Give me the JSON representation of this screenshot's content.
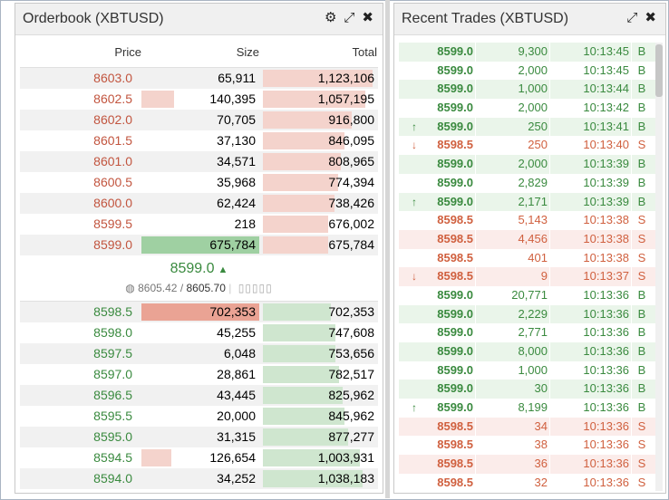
{
  "orderbook": {
    "title": "Orderbook (XBTUSD)",
    "columns": {
      "price": "Price",
      "size": "Size",
      "total": "Total"
    },
    "asks": [
      {
        "price": "8603.0",
        "size": "65,911",
        "total": "1,123,106",
        "size_frac": 0.0,
        "total_frac": 0.95
      },
      {
        "price": "8602.5",
        "size": "140,395",
        "total": "1,057,195",
        "size_frac": 0.28,
        "total_frac": 0.89
      },
      {
        "price": "8602.0",
        "size": "70,705",
        "total": "916,800",
        "size_frac": 0.0,
        "total_frac": 0.77
      },
      {
        "price": "8601.5",
        "size": "37,130",
        "total": "846,095",
        "size_frac": 0.0,
        "total_frac": 0.71
      },
      {
        "price": "8601.0",
        "size": "34,571",
        "total": "808,965",
        "size_frac": 0.0,
        "total_frac": 0.68
      },
      {
        "price": "8600.5",
        "size": "35,968",
        "total": "774,394",
        "size_frac": 0.0,
        "total_frac": 0.65
      },
      {
        "price": "8600.0",
        "size": "62,424",
        "total": "738,426",
        "size_frac": 0.0,
        "total_frac": 0.62
      },
      {
        "price": "8599.5",
        "size": "218",
        "total": "676,002",
        "size_frac": 0.0,
        "total_frac": 0.57
      },
      {
        "price": "8599.0",
        "size": "675,784",
        "total": "675,784",
        "size_frac": 1.0,
        "total_frac": 0.57
      }
    ],
    "mid": {
      "price": "8599.0",
      "index": "8605.42",
      "mark": "8605.70",
      "boxes": "▯▯▯▯▯"
    },
    "bids": [
      {
        "price": "8598.5",
        "size": "702,353",
        "total": "702,353",
        "size_frac": 1.0,
        "total_frac": 0.59
      },
      {
        "price": "8598.0",
        "size": "45,255",
        "total": "747,608",
        "size_frac": 0.0,
        "total_frac": 0.63
      },
      {
        "price": "8597.5",
        "size": "6,048",
        "total": "753,656",
        "size_frac": 0.0,
        "total_frac": 0.63
      },
      {
        "price": "8597.0",
        "size": "28,861",
        "total": "782,517",
        "size_frac": 0.0,
        "total_frac": 0.66
      },
      {
        "price": "8596.5",
        "size": "43,445",
        "total": "825,962",
        "size_frac": 0.0,
        "total_frac": 0.69
      },
      {
        "price": "8595.5",
        "size": "20,000",
        "total": "845,962",
        "size_frac": 0.0,
        "total_frac": 0.71
      },
      {
        "price": "8595.0",
        "size": "31,315",
        "total": "877,277",
        "size_frac": 0.0,
        "total_frac": 0.74
      },
      {
        "price": "8594.5",
        "size": "126,654",
        "total": "1,003,931",
        "size_frac": 0.25,
        "total_frac": 0.84
      },
      {
        "price": "8594.0",
        "size": "34,252",
        "total": "1,038,183",
        "size_frac": 0.0,
        "total_frac": 0.87
      }
    ]
  },
  "trades": {
    "title": "Recent Trades (XBTUSD)",
    "rows": [
      {
        "arrow": "",
        "price": "8599.0",
        "size": "9,300",
        "time": "10:13:45",
        "side": "B"
      },
      {
        "arrow": "",
        "price": "8599.0",
        "size": "2,000",
        "time": "10:13:45",
        "side": "B"
      },
      {
        "arrow": "",
        "price": "8599.0",
        "size": "1,000",
        "time": "10:13:44",
        "side": "B"
      },
      {
        "arrow": "",
        "price": "8599.0",
        "size": "2,000",
        "time": "10:13:42",
        "side": "B"
      },
      {
        "arrow": "↑",
        "price": "8599.0",
        "size": "250",
        "time": "10:13:41",
        "side": "B"
      },
      {
        "arrow": "↓",
        "price": "8598.5",
        "size": "250",
        "time": "10:13:40",
        "side": "S"
      },
      {
        "arrow": "",
        "price": "8599.0",
        "size": "2,000",
        "time": "10:13:39",
        "side": "B"
      },
      {
        "arrow": "",
        "price": "8599.0",
        "size": "2,829",
        "time": "10:13:39",
        "side": "B"
      },
      {
        "arrow": "↑",
        "price": "8599.0",
        "size": "2,171",
        "time": "10:13:39",
        "side": "B"
      },
      {
        "arrow": "",
        "price": "8598.5",
        "size": "5,143",
        "time": "10:13:38",
        "side": "S"
      },
      {
        "arrow": "",
        "price": "8598.5",
        "size": "4,456",
        "time": "10:13:38",
        "side": "S"
      },
      {
        "arrow": "",
        "price": "8598.5",
        "size": "401",
        "time": "10:13:38",
        "side": "S"
      },
      {
        "arrow": "↓",
        "price": "8598.5",
        "size": "9",
        "time": "10:13:37",
        "side": "S"
      },
      {
        "arrow": "",
        "price": "8599.0",
        "size": "20,771",
        "time": "10:13:36",
        "side": "B"
      },
      {
        "arrow": "",
        "price": "8599.0",
        "size": "2,229",
        "time": "10:13:36",
        "side": "B"
      },
      {
        "arrow": "",
        "price": "8599.0",
        "size": "2,771",
        "time": "10:13:36",
        "side": "B"
      },
      {
        "arrow": "",
        "price": "8599.0",
        "size": "8,000",
        "time": "10:13:36",
        "side": "B"
      },
      {
        "arrow": "",
        "price": "8599.0",
        "size": "1,000",
        "time": "10:13:36",
        "side": "B"
      },
      {
        "arrow": "",
        "price": "8599.0",
        "size": "30",
        "time": "10:13:36",
        "side": "B"
      },
      {
        "arrow": "↑",
        "price": "8599.0",
        "size": "8,199",
        "time": "10:13:36",
        "side": "B"
      },
      {
        "arrow": "",
        "price": "8598.5",
        "size": "34",
        "time": "10:13:36",
        "side": "S"
      },
      {
        "arrow": "",
        "price": "8598.5",
        "size": "38",
        "time": "10:13:36",
        "side": "S"
      },
      {
        "arrow": "",
        "price": "8598.5",
        "size": "36",
        "time": "10:13:36",
        "side": "S"
      },
      {
        "arrow": "",
        "price": "8598.5",
        "size": "32",
        "time": "10:13:36",
        "side": "S"
      }
    ]
  },
  "colors": {
    "bid": "#3a8a3f",
    "ask": "#c2553f",
    "bid_bar": "#cfe6cf",
    "ask_bar": "#f4d3cc",
    "bid_bar_strong": "#9fd0a2",
    "ask_bar_strong": "#eaa394"
  }
}
